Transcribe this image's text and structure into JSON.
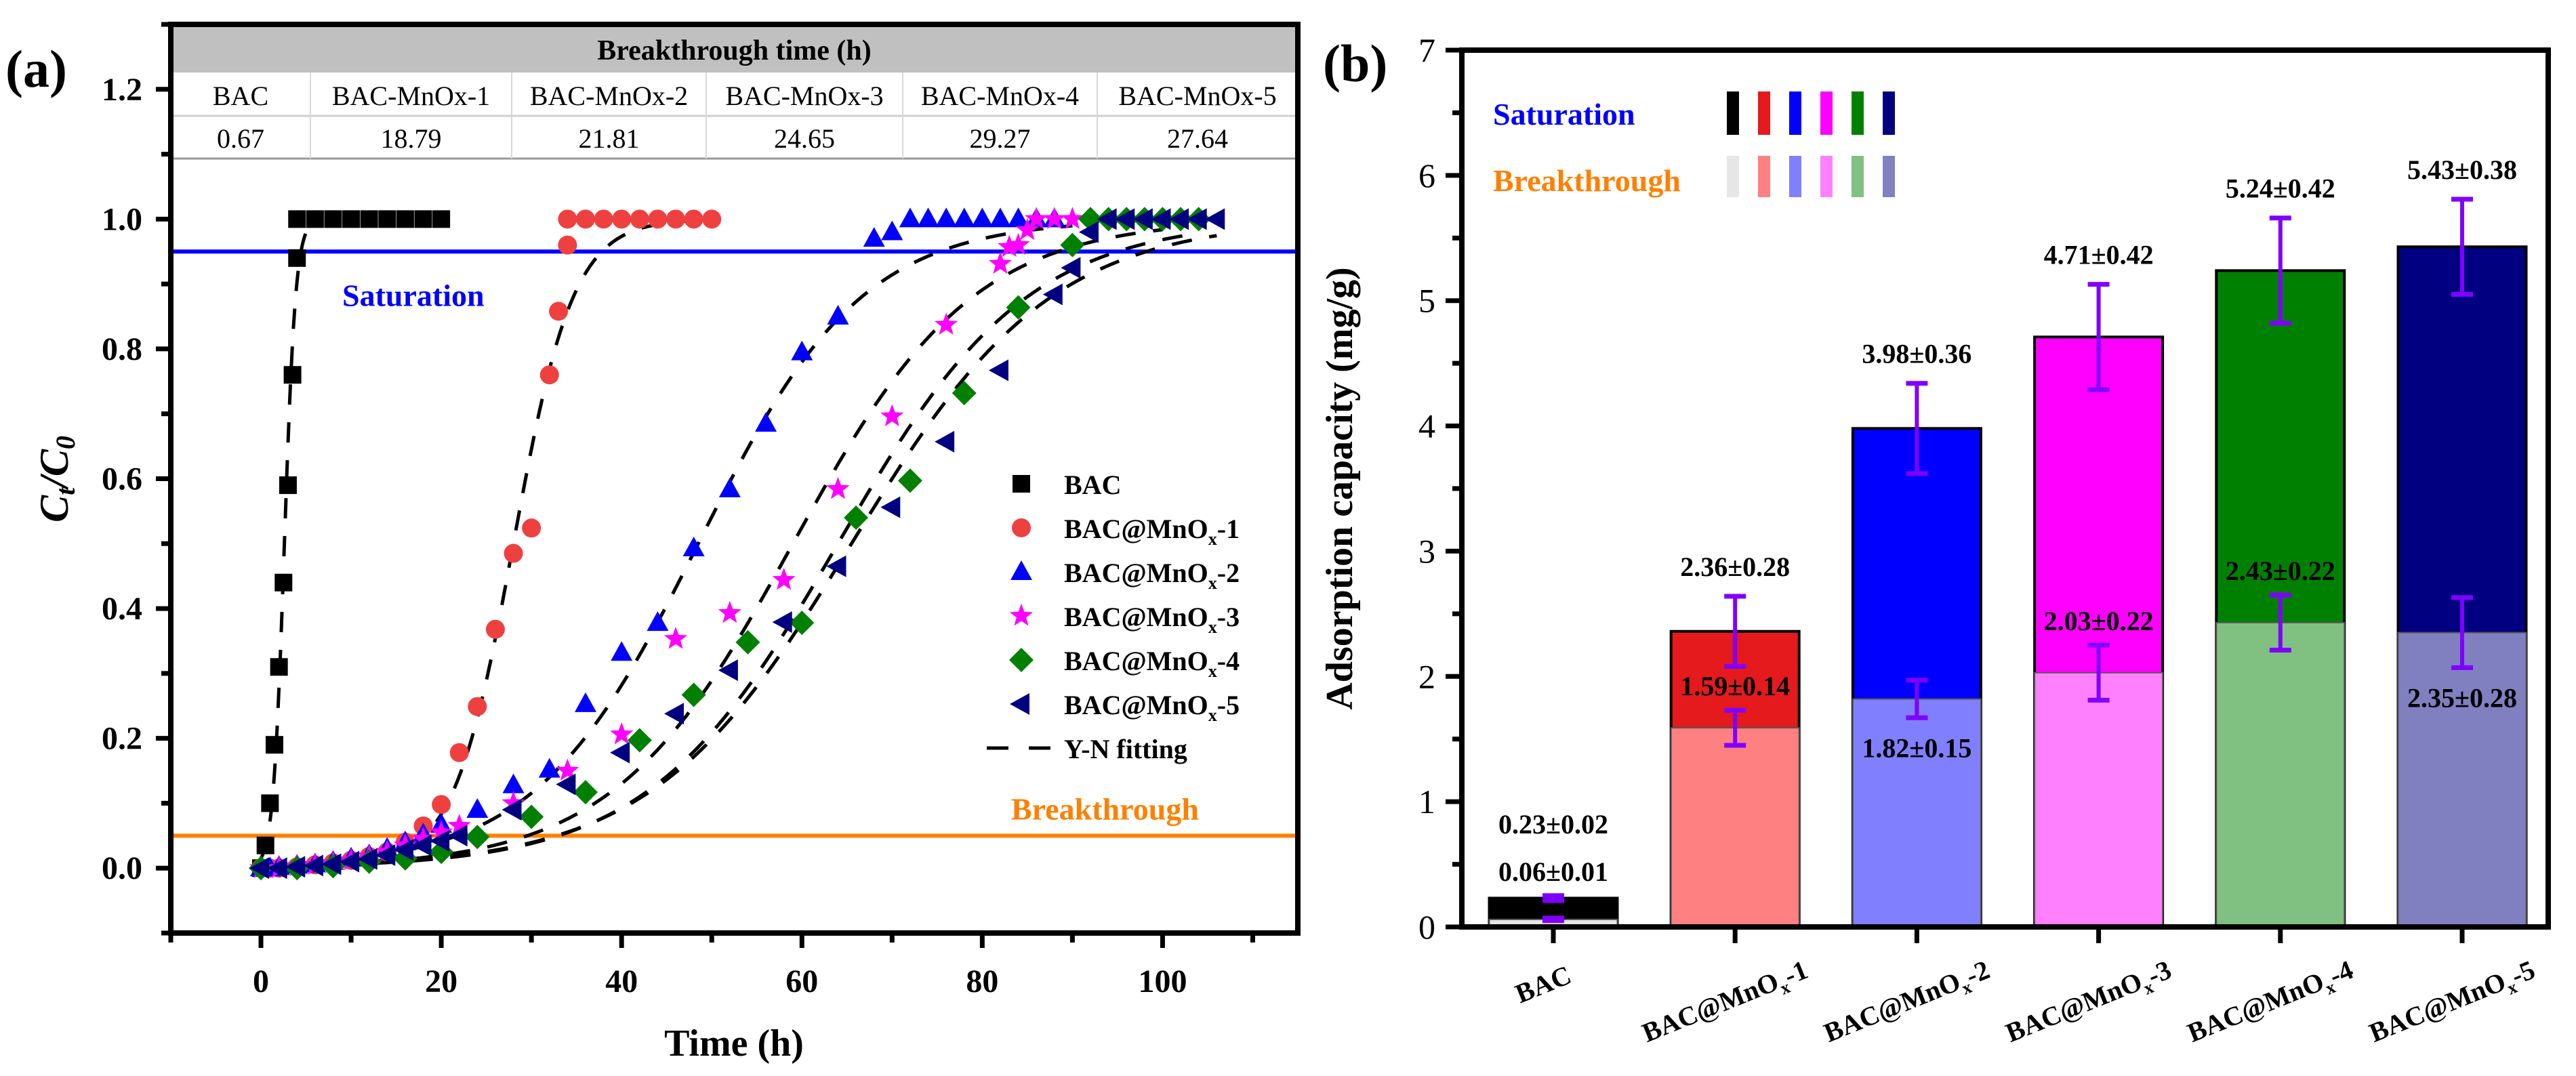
{
  "chart_data": [
    {
      "type": "scatter",
      "panel_label": "(a)",
      "xlabel": "Time (h)",
      "ylabel": {
        "main": "C",
        "sub1": "t",
        "mid": "/C",
        "sub2": "0"
      },
      "xlim": [
        -10,
        115
      ],
      "ylim": [
        -0.1,
        1.3
      ],
      "xticks": [
        0,
        20,
        40,
        60,
        80,
        100
      ],
      "xtick_labels": [
        "0",
        "20",
        "40",
        "60",
        "80",
        "100"
      ],
      "yticks": [
        0,
        0.2,
        0.4,
        0.6,
        0.8,
        1.0,
        1.2
      ],
      "ytick_labels": [
        "0.0",
        "0.2",
        "0.4",
        "0.6",
        "0.8",
        "1.0",
        "1.2"
      ],
      "grid": false,
      "legend_position": "right",
      "reference_lines": [
        {
          "label": "Saturation",
          "y": 0.95,
          "color": "#0000ff"
        },
        {
          "label": "Breakthrough",
          "y": 0.05,
          "color": "#ff8000"
        }
      ],
      "table": {
        "title": "Breakthrough time (h)",
        "headers": [
          "BAC",
          "BAC-MnOx-1",
          "BAC-MnOx-2",
          "BAC-MnOx-3",
          "BAC-MnOx-4",
          "BAC-MnOx-5"
        ],
        "values": [
          "0.67",
          "18.79",
          "21.81",
          "24.65",
          "29.27",
          "27.64"
        ]
      },
      "fit_legend": "Y-N fitting",
      "series": [
        {
          "name": "BAC",
          "marker": "square",
          "color": "#000000",
          "points": [
            [
              0,
              0
            ],
            [
              0.5,
              0.035
            ],
            [
              1,
              0.1
            ],
            [
              1.5,
              0.19
            ],
            [
              2,
              0.31
            ],
            [
              2.5,
              0.44
            ],
            [
              3,
              0.59
            ],
            [
              3.5,
              0.76
            ],
            [
              4,
              0.94
            ],
            [
              4,
              1
            ],
            [
              6,
              1
            ],
            [
              8,
              1
            ],
            [
              10,
              1
            ],
            [
              12,
              1
            ],
            [
              14,
              1
            ],
            [
              16,
              1
            ],
            [
              18,
              1
            ],
            [
              20,
              1
            ]
          ],
          "fit": {
            "tau": 2.6,
            "k": 1.6,
            "t_range": [
              0,
              5
            ]
          }
        },
        {
          "name": "BAC@MnOx-1",
          "marker": "circle",
          "color": "#ef4040",
          "points": [
            [
              0,
              0
            ],
            [
              1,
              0
            ],
            [
              2,
              0
            ],
            [
              4,
              0.002
            ],
            [
              6,
              0.005
            ],
            [
              8,
              0.008
            ],
            [
              10,
              0.012
            ],
            [
              12,
              0.018
            ],
            [
              14,
              0.025
            ],
            [
              16,
              0.04
            ],
            [
              18,
              0.065
            ],
            [
              20,
              0.098
            ],
            [
              22,
              0.178
            ],
            [
              24,
              0.249
            ],
            [
              26,
              0.368
            ],
            [
              28,
              0.485
            ],
            [
              30,
              0.524
            ],
            [
              32,
              0.76
            ],
            [
              33,
              0.858
            ],
            [
              34,
              0.96
            ],
            [
              34,
              1
            ],
            [
              36,
              1
            ],
            [
              38,
              1
            ],
            [
              40,
              1
            ],
            [
              42,
              1
            ],
            [
              44,
              1
            ],
            [
              46,
              1
            ],
            [
              48,
              1
            ],
            [
              50,
              1
            ]
          ],
          "fit": {
            "tau": 28,
            "k": 0.3,
            "t_range": [
              0,
              48
            ]
          }
        },
        {
          "name": "BAC@MnOx-2",
          "marker": "triangle-up",
          "color": "#0000ff",
          "points": [
            [
              0,
              0
            ],
            [
              1,
              0
            ],
            [
              2,
              0.002
            ],
            [
              4,
              0.004
            ],
            [
              6,
              0.006
            ],
            [
              8,
              0.01
            ],
            [
              10,
              0.015
            ],
            [
              12,
              0.02
            ],
            [
              14,
              0.03
            ],
            [
              16,
              0.04
            ],
            [
              18,
              0.052
            ],
            [
              20,
              0.067
            ],
            [
              24,
              0.09
            ],
            [
              28,
              0.128
            ],
            [
              32,
              0.152
            ],
            [
              36,
              0.253
            ],
            [
              40,
              0.332
            ],
            [
              44,
              0.378
            ],
            [
              48,
              0.493
            ],
            [
              52,
              0.584
            ],
            [
              56,
              0.685
            ],
            [
              60,
              0.795
            ],
            [
              64,
              0.85
            ],
            [
              68,
              0.97
            ],
            [
              70,
              0.98
            ],
            [
              72,
              1
            ],
            [
              74,
              1
            ],
            [
              76,
              1
            ],
            [
              78,
              1
            ],
            [
              80,
              1
            ],
            [
              82,
              1
            ],
            [
              84,
              1
            ],
            [
              86,
              1
            ],
            [
              88,
              1
            ]
          ],
          "fit": {
            "tau": 48.5,
            "k": 0.11,
            "t_range": [
              0,
              90
            ]
          }
        },
        {
          "name": "BAC@MnOx-3",
          "marker": "star",
          "color": "#ff00ff",
          "points": [
            [
              0,
              0
            ],
            [
              2,
              0
            ],
            [
              4,
              0.003
            ],
            [
              6,
              0.005
            ],
            [
              8,
              0.008
            ],
            [
              10,
              0.012
            ],
            [
              12,
              0.018
            ],
            [
              14,
              0.025
            ],
            [
              16,
              0.035
            ],
            [
              18,
              0.045
            ],
            [
              20,
              0.055
            ],
            [
              22,
              0.065
            ],
            [
              28,
              0.1
            ],
            [
              34,
              0.15
            ],
            [
              40,
              0.206
            ],
            [
              46,
              0.353
            ],
            [
              52,
              0.393
            ],
            [
              58,
              0.444
            ],
            [
              64,
              0.584
            ],
            [
              70,
              0.696
            ],
            [
              76,
              0.837
            ],
            [
              82,
              0.931
            ],
            [
              83,
              0.957
            ],
            [
              84,
              0.96
            ],
            [
              85,
              0.983
            ],
            [
              86,
              1
            ],
            [
              88,
              1
            ],
            [
              90,
              1
            ]
          ],
          "fit": {
            "tau": 59,
            "k": 0.1,
            "t_range": [
              0,
              100
            ]
          }
        },
        {
          "name": "BAC@MnOx-4",
          "marker": "diamond",
          "color": "#008000",
          "points": [
            [
              0,
              0
            ],
            [
              4,
              0
            ],
            [
              8,
              0.003
            ],
            [
              12,
              0.01
            ],
            [
              16,
              0.015
            ],
            [
              20,
              0.025
            ],
            [
              24,
              0.048
            ],
            [
              30,
              0.079
            ],
            [
              36,
              0.117
            ],
            [
              42,
              0.197
            ],
            [
              48,
              0.267
            ],
            [
              54,
              0.348
            ],
            [
              60,
              0.378
            ],
            [
              66,
              0.54
            ],
            [
              72,
              0.597
            ],
            [
              78,
              0.732
            ],
            [
              84,
              0.864
            ],
            [
              90,
              0.96
            ],
            [
              92,
              1
            ],
            [
              94,
              1
            ],
            [
              96,
              1
            ],
            [
              98,
              1
            ],
            [
              100,
              1
            ],
            [
              102,
              1
            ],
            [
              104,
              1
            ]
          ],
          "fit": {
            "tau": 64,
            "k": 0.095,
            "t_range": [
              0,
              104
            ]
          }
        },
        {
          "name": "BAC@MnOx-5",
          "marker": "triangle-left",
          "color": "#000080",
          "points": [
            [
              0,
              0
            ],
            [
              2,
              0
            ],
            [
              4,
              0.002
            ],
            [
              6,
              0.004
            ],
            [
              8,
              0.006
            ],
            [
              10,
              0.01
            ],
            [
              12,
              0.014
            ],
            [
              14,
              0.02
            ],
            [
              16,
              0.028
            ],
            [
              18,
              0.035
            ],
            [
              20,
              0.042
            ],
            [
              22,
              0.05
            ],
            [
              28,
              0.09
            ],
            [
              34,
              0.129
            ],
            [
              40,
              0.178
            ],
            [
              46,
              0.238
            ],
            [
              52,
              0.305
            ],
            [
              58,
              0.379
            ],
            [
              64,
              0.465
            ],
            [
              70,
              0.556
            ],
            [
              76,
              0.657
            ],
            [
              82,
              0.767
            ],
            [
              88,
              0.884
            ],
            [
              90,
              0.925
            ],
            [
              92,
              0.98
            ],
            [
              94,
              1
            ],
            [
              96,
              1
            ],
            [
              98,
              1
            ],
            [
              100,
              1
            ],
            [
              102,
              1
            ],
            [
              104,
              1
            ],
            [
              106,
              1
            ]
          ],
          "fit": {
            "tau": 65.5,
            "k": 0.09,
            "t_range": [
              0,
              106
            ]
          }
        }
      ]
    },
    {
      "type": "bar",
      "panel_label": "(b)",
      "title": "",
      "xlabel": "",
      "ylabel": "Adsorption capacity (mg/g)",
      "ylim": [
        0,
        7
      ],
      "yticks": [
        0,
        1,
        2,
        3,
        4,
        5,
        6,
        7
      ],
      "ytick_labels": [
        "0",
        "1",
        "2",
        "3",
        "4",
        "5",
        "6",
        "7"
      ],
      "categories": [
        "BAC",
        "BAC@MnOx-1",
        "BAC@MnOx-2",
        "BAC@MnOx-3",
        "BAC@MnOx-4",
        "BAC@MnOx-5"
      ],
      "legend_position": "top-left",
      "error_bar_color": "#8000ff",
      "series": [
        {
          "name": "Saturation",
          "label_color": "#0000ff",
          "values": [
            0.23,
            2.36,
            3.98,
            4.71,
            5.24,
            5.43
          ],
          "errors": [
            0.02,
            0.28,
            0.36,
            0.42,
            0.42,
            0.38
          ],
          "labels": [
            "0.23±0.02",
            "2.36±0.28",
            "3.98±0.36",
            "4.71±0.42",
            "5.24±0.42",
            "5.43±0.38"
          ],
          "colors": [
            "#000000",
            "#e41a1c",
            "#0000ff",
            "#ff00ff",
            "#008000",
            "#000080"
          ]
        },
        {
          "name": "Breakthrough",
          "label_color": "#ff8000",
          "values": [
            0.06,
            1.59,
            1.82,
            2.03,
            2.43,
            2.35
          ],
          "errors": [
            0.01,
            0.14,
            0.15,
            0.22,
            0.22,
            0.28
          ],
          "labels": [
            "0.06±0.01",
            "1.59±0.14",
            "1.82±0.15",
            "2.03±0.22",
            "2.43±0.22",
            "2.35±0.28"
          ],
          "colors": [
            "#e6e6e6",
            "#ff8080",
            "#8080ff",
            "#ff80ff",
            "#80c080",
            "#8080c0"
          ]
        }
      ]
    }
  ]
}
